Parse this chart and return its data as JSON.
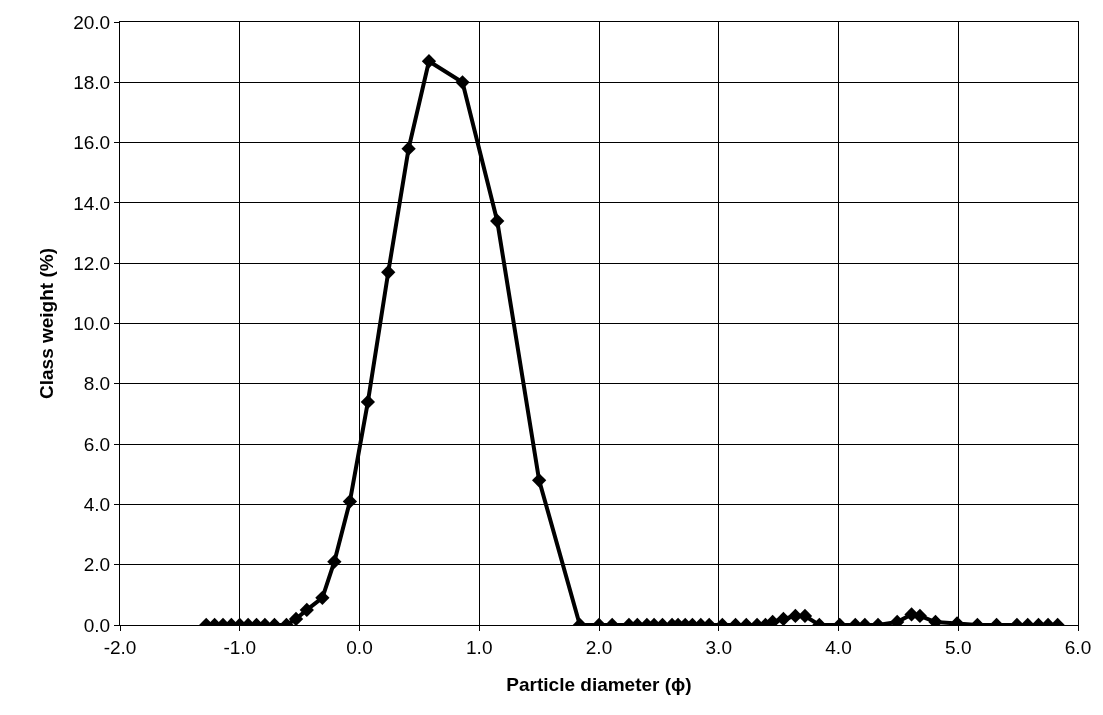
{
  "chart_data": {
    "type": "line",
    "xlabel": "Particle diameter (ϕ)",
    "ylabel": "Class weight (%)",
    "x": [
      -1.28,
      -1.21,
      -1.14,
      -1.07,
      -1.0,
      -0.93,
      -0.86,
      -0.79,
      -0.71,
      -0.61,
      -0.53,
      -0.44,
      -0.31,
      -0.21,
      -0.08,
      0.07,
      0.24,
      0.41,
      0.58,
      0.86,
      1.15,
      1.5,
      1.84,
      2.0,
      2.11,
      2.25,
      2.32,
      2.4,
      2.46,
      2.53,
      2.61,
      2.66,
      2.72,
      2.78,
      2.85,
      2.92,
      3.03,
      3.14,
      3.23,
      3.32,
      3.39,
      3.45,
      3.54,
      3.64,
      3.72,
      3.84,
      4.01,
      4.14,
      4.22,
      4.33,
      4.49,
      4.61,
      4.68,
      4.81,
      4.99,
      5.16,
      5.32,
      5.49,
      5.58,
      5.67,
      5.75,
      5.83
    ],
    "series": [
      {
        "color": "#000000",
        "values": [
          0,
          0,
          0,
          0,
          0,
          0,
          0,
          0,
          0,
          0,
          0.2,
          0.5,
          0.9,
          2.1,
          4.1,
          7.4,
          11.7,
          15.8,
          18.7,
          18.0,
          13.4,
          4.8,
          0,
          0,
          0,
          0,
          0,
          0,
          0,
          0,
          0,
          0,
          0,
          0,
          0,
          0,
          0,
          0,
          0,
          0,
          0,
          0.1,
          0.2,
          0.3,
          0.3,
          0.0,
          0,
          0,
          0,
          0,
          0.1,
          0.35,
          0.3,
          0.1,
          0.05,
          0,
          0,
          0,
          0,
          0,
          0,
          0
        ]
      }
    ],
    "xlim": [
      -2.0,
      6.0
    ],
    "xticks": [
      {
        "value": -2,
        "label": "-2.0"
      },
      {
        "value": -1,
        "label": "-1.0"
      },
      {
        "value": 0,
        "label": "0.0"
      },
      {
        "value": 1,
        "label": "1.0"
      },
      {
        "value": 2,
        "label": "2.0"
      },
      {
        "value": 3,
        "label": "3.0"
      },
      {
        "value": 4,
        "label": "4.0"
      },
      {
        "value": 5,
        "label": "5.0"
      },
      {
        "value": 6,
        "label": "6.0"
      }
    ],
    "ylim": [
      0,
      20
    ],
    "yticks": [
      {
        "value": 0,
        "label": "0.0"
      },
      {
        "value": 2,
        "label": "2.0"
      },
      {
        "value": 4,
        "label": "4.0"
      },
      {
        "value": 6,
        "label": "6.0"
      },
      {
        "value": 8,
        "label": "8.0"
      },
      {
        "value": 10,
        "label": "10.0"
      },
      {
        "value": 12,
        "label": "12.0"
      },
      {
        "value": 14,
        "label": "14.0"
      },
      {
        "value": 16,
        "label": "16.0"
      },
      {
        "value": 18,
        "label": "18.0"
      },
      {
        "value": 20,
        "label": "20.0"
      }
    ],
    "grid": true,
    "marker": "diamond",
    "line_style": "solid"
  }
}
